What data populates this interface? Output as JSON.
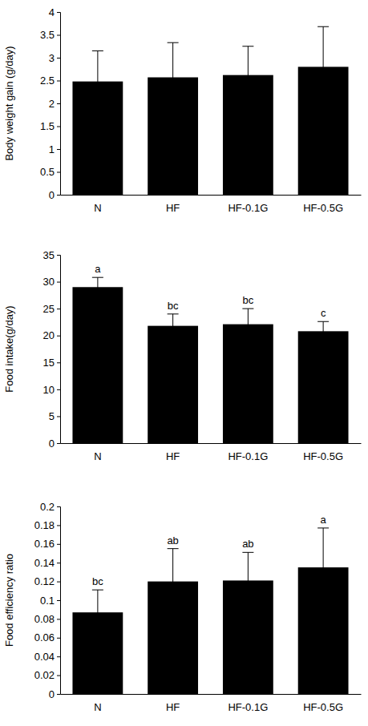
{
  "chart_data": [
    {
      "type": "bar",
      "y_label": "Body weight gain (g/day)",
      "categories": [
        "N",
        "HF",
        "HF-0.1G",
        "HF-0.5G"
      ],
      "values": [
        2.48,
        2.57,
        2.62,
        2.8
      ],
      "errors": [
        0.67,
        0.76,
        0.63,
        0.88
      ],
      "color": "#000000",
      "ylim": [
        0,
        4
      ],
      "yticks": [
        0,
        0.5,
        1,
        1.5,
        2,
        2.5,
        3,
        3.5,
        4
      ]
    },
    {
      "type": "bar",
      "y_label": "Food intake(g/day)",
      "categories": [
        "N",
        "HF",
        "HF-0.1G",
        "HF-0.5G"
      ],
      "values": [
        29.0,
        21.8,
        22.1,
        20.8
      ],
      "errors": [
        1.8,
        2.2,
        2.9,
        1.8
      ],
      "annotations": [
        "a",
        "bc",
        "bc",
        "c"
      ],
      "color": "#000000",
      "ylim": [
        0,
        35
      ],
      "yticks": [
        0,
        5,
        10,
        15,
        20,
        25,
        30,
        35
      ]
    },
    {
      "type": "bar",
      "y_label": "Food efficiency ratio",
      "categories": [
        "N",
        "HF",
        "HF-0.1G",
        "HF-0.5G"
      ],
      "values": [
        0.087,
        0.12,
        0.121,
        0.135
      ],
      "errors": [
        0.024,
        0.035,
        0.03,
        0.042
      ],
      "annotations": [
        "bc",
        "ab",
        "ab",
        "a"
      ],
      "color": "#000000",
      "ylim": [
        0,
        0.2
      ],
      "yticks": [
        0,
        0.02,
        0.04,
        0.06,
        0.08,
        0.1,
        0.12,
        0.14,
        0.16,
        0.18,
        0.2
      ]
    }
  ]
}
